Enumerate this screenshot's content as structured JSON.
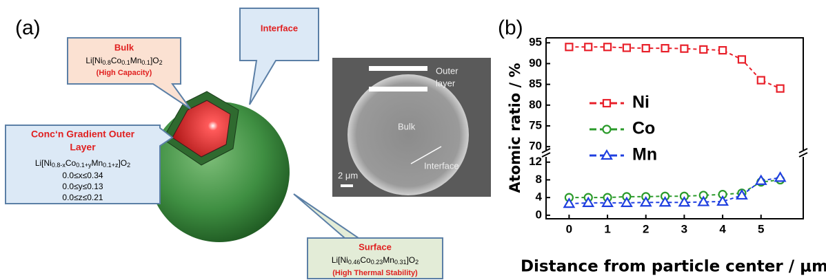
{
  "panel_a": {
    "label": "(a)",
    "bulk": {
      "title": "Bulk",
      "formula": "Li[Ni0.8Co0.1Mn0.1]O2",
      "note": "(High Capacity)"
    },
    "interface": {
      "title": "Interface"
    },
    "outer_layer": {
      "title": [
        "Conc‘n Gradient Outer",
        "Layer"
      ],
      "formula": "Li[Ni0.8-xCo0.1+yMn0.1+z]O2",
      "ranges": [
        "0.0≤x≤0.34",
        "0.0≤y≤0.13",
        "0.0≤z≤0.21"
      ]
    },
    "surface": {
      "title": "Surface",
      "formula": "Li[Ni0.46Co0.23Mn0.31]O2",
      "note": "(High Thermal Stability)"
    },
    "micrograph": {
      "outer_layer": [
        "Outer",
        "layer"
      ],
      "bulk": "Bulk",
      "interface": "Interface",
      "scale": "2 μm"
    }
  },
  "chart_data": {
    "type": "line",
    "label": "(b)",
    "x_label": "Distance from particle center / μm",
    "y_label": "Atomic ratio / %",
    "x": [
      0,
      0.5,
      1,
      1.5,
      2,
      2.5,
      3,
      3.5,
      4,
      4.5,
      5,
      5.5
    ],
    "series": [
      {
        "name": "Ni",
        "color": "#e8202a",
        "marker": "square",
        "values": [
          94,
          94,
          94,
          93.8,
          93.7,
          93.7,
          93.6,
          93.4,
          93.2,
          91,
          86,
          84
        ]
      },
      {
        "name": "Co",
        "color": "#2a9a2a",
        "marker": "circle",
        "values": [
          4,
          4,
          4,
          4.2,
          4.2,
          4.3,
          4.3,
          4.5,
          4.7,
          5,
          7.5,
          8
        ]
      },
      {
        "name": "Mn",
        "color": "#1f3fe0",
        "marker": "triangle",
        "values": [
          2.6,
          2.8,
          2.8,
          2.8,
          2.9,
          2.9,
          2.9,
          3,
          3.1,
          4.5,
          7.8,
          8.5
        ]
      }
    ],
    "xlim": [
      -0.6,
      6.1
    ],
    "xticks": [
      0,
      1,
      2,
      3,
      4,
      5
    ],
    "ylim": [
      [
        -0.8,
        13.2
      ],
      [
        69.2,
        96.2
      ]
    ],
    "yticks": [
      0,
      4,
      8,
      12,
      70,
      75,
      80,
      85,
      90,
      95
    ],
    "legend": "center left"
  }
}
